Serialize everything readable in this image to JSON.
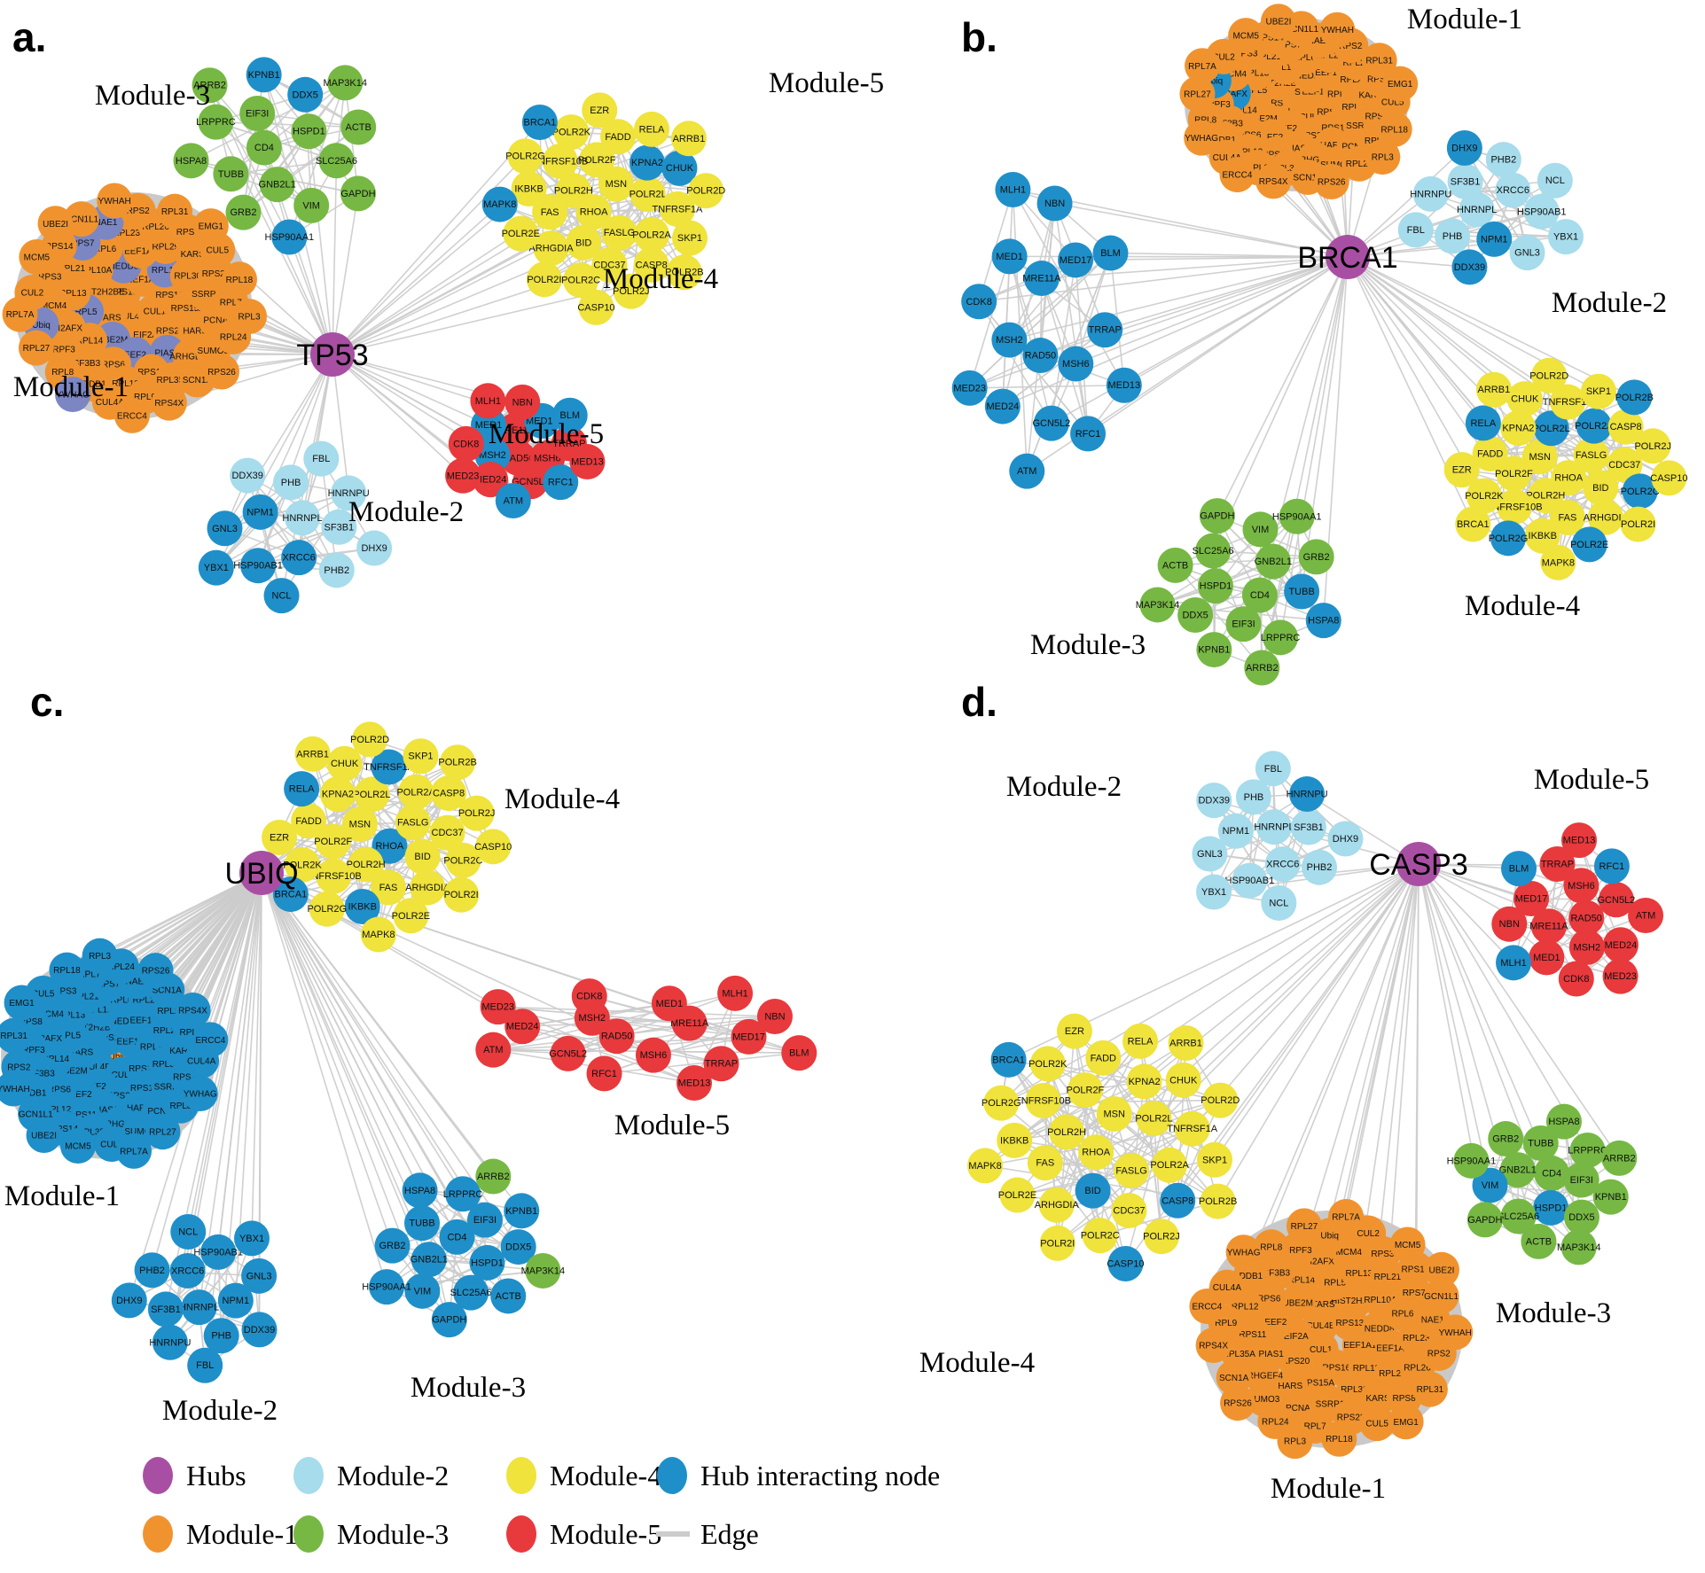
{
  "colors": {
    "hub": "#a94fa3",
    "module1": "#f0932f",
    "module2": "#a6dcec",
    "module3": "#76b843",
    "module4": "#efe33c",
    "module5": "#e8393c",
    "hub_interacting": "#1f8fc9",
    "slate": "#7b86c3",
    "edge": "#cccccc",
    "packed_backing": "#c9c9c9"
  },
  "gene_sets": {
    "module1": [
      "CUL4B",
      "RPS13",
      "CUL1",
      "TARS",
      "EEF1A1",
      "EIF2A",
      "HIST2H2BE",
      "RPS16",
      "UBE2M",
      "NEDD8",
      "RPS20",
      "RPL5",
      "RPL11",
      "EEF2",
      "RPL10A",
      "RPS15A",
      "RPL14",
      "EEF1A2",
      "PIAS1",
      "RPL13",
      "RPL30",
      "RPS6",
      "RPL6",
      "HARS",
      "H2AFX",
      "RPL29",
      "RPS11",
      "RPL21",
      "SSRP1",
      "SF3B3",
      "RPL23",
      "ARHGEF4",
      "MCM4",
      "KARS",
      "RPL12",
      "RPS7",
      "PCNA",
      "PRPF3",
      "RPL26",
      "RPL35A",
      "RPS3",
      "RPS23",
      "DDB1",
      "NAE1",
      "SUMO3",
      "Ubiq",
      "RPS8",
      "RPL9",
      "RPS14",
      "RPL7",
      "RPL8",
      "RPS2",
      "SCN1A",
      "CUL2",
      "CUL5",
      "CUL4A",
      "GCN1L1",
      "RPL24",
      "RPL27",
      "RPL31",
      "RPS4X",
      "MCM5",
      "RPL18",
      "YWHAG",
      "YWHAH",
      "RPS26",
      "RPL7A",
      "EMG1",
      "ERCC4",
      "UBE2I",
      "RPL3"
    ],
    "module2": [
      "HNRNPL",
      "XRCC6",
      "NPM1",
      "SF3B1",
      "HSP90AB1",
      "PHB",
      "PHB2",
      "GNL3",
      "HNRNPU",
      "NCL",
      "DDX39",
      "DHX9",
      "YBX1",
      "FBL"
    ],
    "module3": [
      "CD4",
      "HSPD1",
      "GNB2L1",
      "EIF3I",
      "SLC25A6",
      "TUBB",
      "DDX5",
      "VIM",
      "LRPPRC",
      "ACTB",
      "GRB2",
      "KPNB1",
      "GAPDH",
      "HSPA8",
      "MAP3K14",
      "HSP90AA1",
      "ARRB2"
    ],
    "module4": [
      "RHOA",
      "MSN",
      "FASLG",
      "POLR2H",
      "POLR2L",
      "BID",
      "POLR2F",
      "POLR2A",
      "FAS",
      "KPNA2",
      "CDC37",
      "TNFRSF10B",
      "TNFRSF1A",
      "ARHGDIA",
      "FADD",
      "CASP8",
      "IKBKB",
      "CHUK",
      "POLR2C",
      "POLR2K",
      "SKP1",
      "POLR2E",
      "RELA",
      "POLR2J",
      "POLR2G",
      "POLR2D",
      "POLR2I",
      "EZR",
      "POLR2B",
      "MAPK8",
      "ARRB1",
      "CASP10",
      "BRCA1"
    ],
    "module5": [
      "RAD50",
      "MRE11A",
      "MSH6",
      "MSH2",
      "MED17",
      "GCN5L2",
      "MED1",
      "TRRAP",
      "MED24",
      "NBN",
      "RFC1",
      "CDK8",
      "BLM",
      "ATM",
      "MLH1",
      "MED13",
      "MED23"
    ]
  },
  "panels": [
    {
      "id": "a",
      "letter": "a.",
      "hub": "TP53",
      "modules": [
        {
          "set": "module3",
          "label": "Module-3",
          "highlight": [
            "DDX5",
            "KPNB1",
            "HSP90AA1"
          ]
        },
        {
          "set": "module4",
          "label": "Module-4",
          "highlight": [
            "KPNA2",
            "CHUK",
            "MAPK8",
            "BRCA1"
          ]
        },
        {
          "set": "module1",
          "label": "Module-1",
          "highlight": [
            "RPL11",
            "RPL5",
            "EEF2",
            "UBE2M",
            "NEDD8",
            "PIAS1",
            "RPS7",
            "NAE1",
            "Ubiq",
            "YWHAG"
          ],
          "highlight_color": "slate"
        },
        {
          "set": "module2",
          "label": "Module-2",
          "highlight": [
            "XRCC6",
            "NPM1",
            "HSP90AB1",
            "GNL3",
            "NCL",
            "YBX1"
          ]
        },
        {
          "set": "module5",
          "label": "Module-5",
          "highlight": [
            "MSH2",
            "MED17",
            "MED1",
            "RFC1",
            "BLM",
            "ATM"
          ]
        }
      ]
    },
    {
      "id": "b",
      "letter": "b.",
      "hub": "BRCA1",
      "modules": [
        {
          "set": "module1",
          "label": "Module-1",
          "highlight": [
            "Ubiq",
            "H2AFX"
          ]
        },
        {
          "set": "module5",
          "label": "Module-5",
          "highlight": [],
          "highlight_mode": "all_except"
        },
        {
          "set": "module2",
          "label": "Module-2",
          "highlight": [
            "NPM1",
            "DHX9",
            "DDX39"
          ]
        },
        {
          "set": "module4",
          "label": "Module-4",
          "highlight": [
            "POLR2A",
            "POLR2B",
            "POLR2C",
            "POLR2E",
            "POLR2G",
            "POLR2L",
            "RELA"
          ]
        },
        {
          "set": "module3",
          "label": "Module-3",
          "highlight": [
            "TUBB",
            "HSPA8"
          ]
        }
      ]
    },
    {
      "id": "c",
      "letter": "c.",
      "hub": "UBIQ",
      "modules": [
        {
          "set": "module4",
          "label": "Module-4",
          "highlight": [
            "BRCA1",
            "IKBKB",
            "RELA",
            "TNFRSF1A",
            "RHOA"
          ]
        },
        {
          "set": "module5",
          "label": "Module-5",
          "highlight": []
        },
        {
          "set": "module1",
          "label": "Module-1",
          "highlight": [
            "Ubiq"
          ],
          "highlight_mode": "all_except"
        },
        {
          "set": "module2",
          "label": "Module-2",
          "highlight": [],
          "highlight_mode": "all_except"
        },
        {
          "set": "module3",
          "label": "Module-3",
          "highlight": [
            "ARRB2",
            "MAP3K14"
          ],
          "highlight_mode": "all_except"
        }
      ]
    },
    {
      "id": "d",
      "letter": "d.",
      "hub": "CASP3",
      "modules": [
        {
          "set": "module2",
          "label": "Module-2",
          "highlight": [
            "HNRNPU"
          ]
        },
        {
          "set": "module5",
          "label": "Module-5",
          "highlight": [
            "RFC1",
            "MLH1",
            "BLM"
          ]
        },
        {
          "set": "module4",
          "label": "Module-4",
          "highlight": [
            "BRCA1",
            "CASP10",
            "CASP8",
            "BID"
          ]
        },
        {
          "set": "module3",
          "label": "Module-3",
          "highlight": [
            "VIM",
            "HSPD1"
          ]
        },
        {
          "set": "module1",
          "label": "Module-1",
          "highlight": []
        }
      ]
    }
  ],
  "legend": {
    "items": [
      {
        "label": "Hubs",
        "color": "hub",
        "type": "dot"
      },
      {
        "label": "Module-2",
        "color": "module2",
        "type": "dot"
      },
      {
        "label": "Module-4",
        "color": "module4",
        "type": "dot"
      },
      {
        "label": "Hub interacting node",
        "color": "hub_interacting",
        "type": "dot"
      },
      {
        "label": "Module-1",
        "color": "module1",
        "type": "dot"
      },
      {
        "label": "Module-3",
        "color": "module3",
        "type": "dot"
      },
      {
        "label": "Module-5",
        "color": "module5",
        "type": "dot"
      },
      {
        "label": "Edge",
        "color": "edge",
        "type": "line"
      }
    ]
  }
}
